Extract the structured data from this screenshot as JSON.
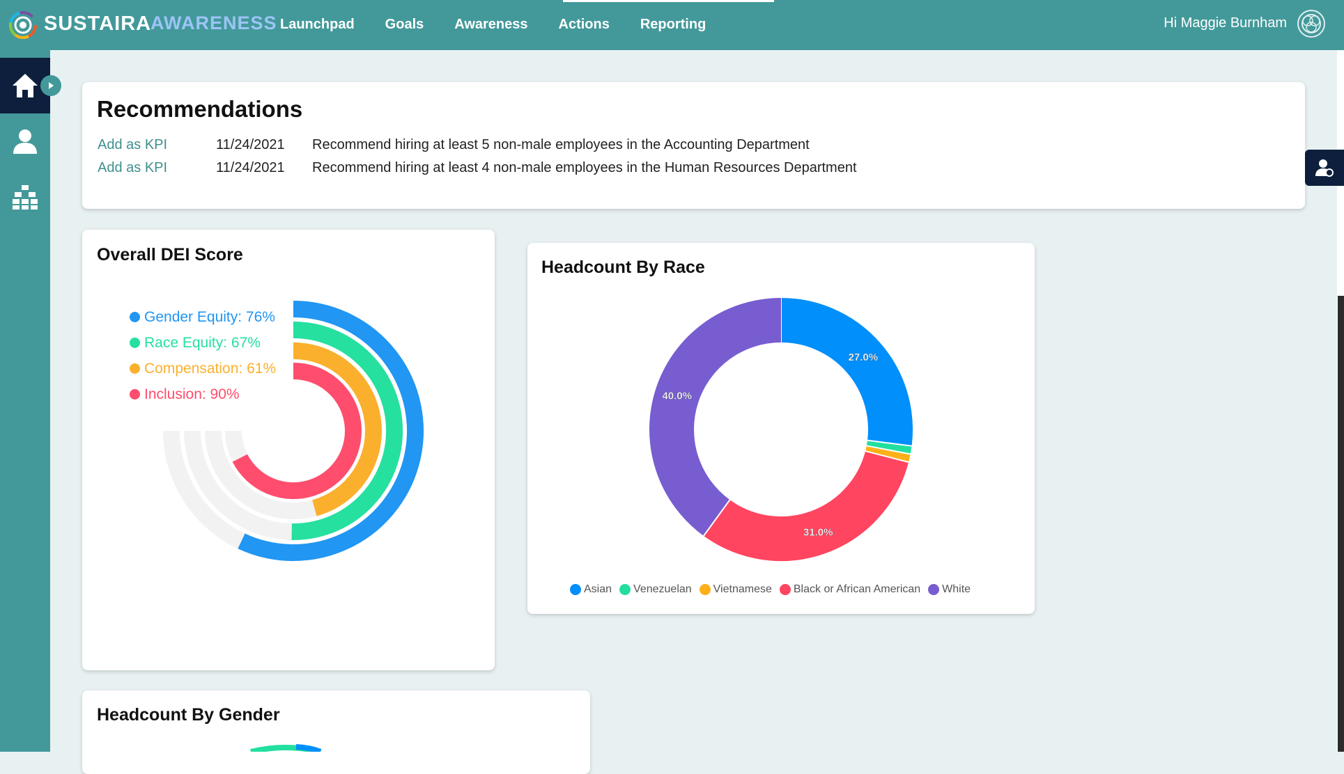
{
  "brand": {
    "name": "SUSTAIRA",
    "product": "AWARENESS"
  },
  "nav": [
    {
      "label": "Launchpad"
    },
    {
      "label": "Goals"
    },
    {
      "label": "Awareness"
    },
    {
      "label": "Actions"
    },
    {
      "label": "Reporting"
    }
  ],
  "user": {
    "greeting": "Hi Maggie Burnham"
  },
  "sidebar": {
    "items": [
      {
        "icon": "home-icon"
      },
      {
        "icon": "user-icon"
      },
      {
        "icon": "org-chart-icon"
      }
    ]
  },
  "recommendations": {
    "title": "Recommendations",
    "rows": [
      {
        "action": "Add as KPI",
        "date": "11/24/2021",
        "text": "Recommend hiring at least 5 non-male employees in the Accounting Department"
      },
      {
        "action": "Add as KPI",
        "date": "11/24/2021",
        "text": "Recommend hiring at least 4 non-male employees in the Human Resources Department"
      }
    ]
  },
  "dei": {
    "title": "Overall DEI Score",
    "legend": [
      {
        "label": "Gender Equity: 76%",
        "color": "#2196f3"
      },
      {
        "label": "Race Equity: 67%",
        "color": "#26e0a0"
      },
      {
        "label": "Compensation: 61%",
        "color": "#fbb02d"
      },
      {
        "label": "Inclusion: 90%",
        "color": "#ff4d6d"
      }
    ]
  },
  "race": {
    "title": "Headcount By Race"
  },
  "gender": {
    "title": "Headcount By Gender"
  },
  "chart_data": [
    {
      "type": "radialBar",
      "title": "Overall DEI Score",
      "categories": [
        "Gender Equity",
        "Race Equity",
        "Compensation",
        "Inclusion"
      ],
      "values": [
        76,
        67,
        61,
        90
      ],
      "unit": "%",
      "colors": [
        "#2196f3",
        "#26e0a0",
        "#fbb02d",
        "#ff4d6d"
      ],
      "legend_position": "top-left"
    },
    {
      "type": "pie",
      "donut": true,
      "title": "Headcount By Race",
      "categories": [
        "Asian",
        "Venezuelan",
        "Vietnamese",
        "Black or African American",
        "White"
      ],
      "values": [
        27.0,
        1.0,
        1.0,
        31.0,
        40.0
      ],
      "data_labels": [
        "27.0%",
        "",
        "",
        "31.0%",
        "40.0%"
      ],
      "colors": [
        "#008ffb",
        "#22dfa0",
        "#feb019",
        "#ff4560",
        "#775dd0"
      ],
      "legend_position": "bottom"
    }
  ]
}
